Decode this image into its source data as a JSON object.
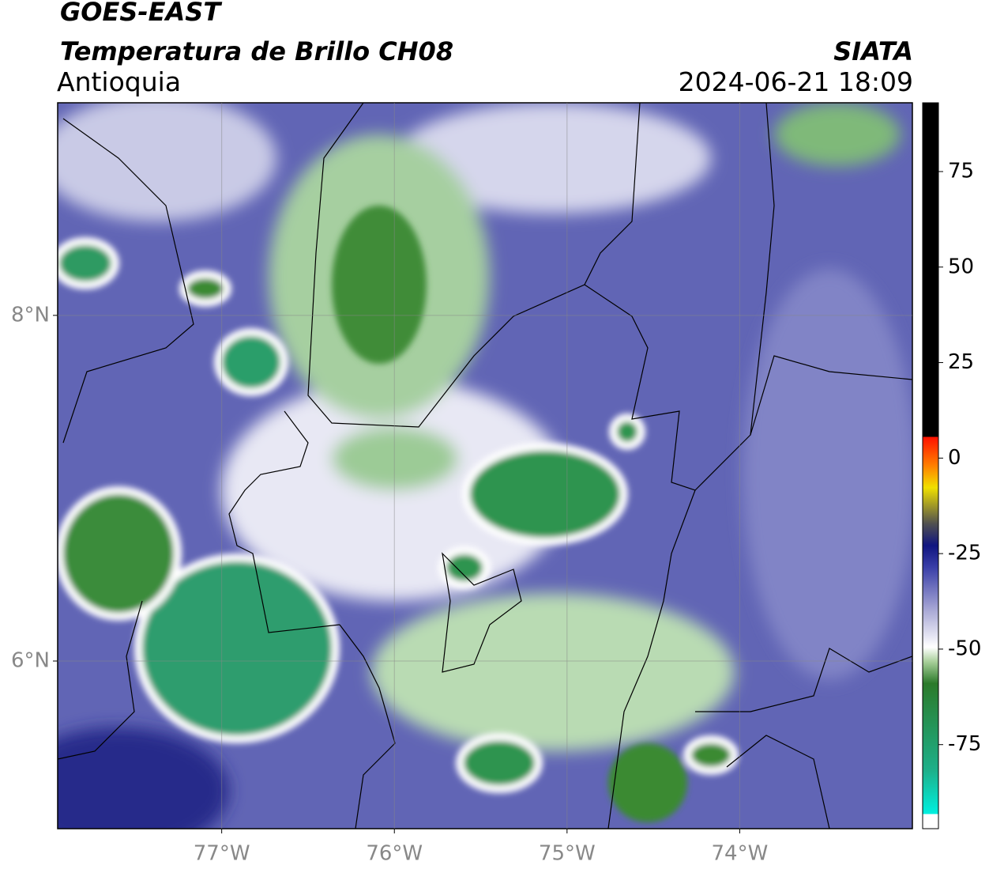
{
  "header": {
    "title": "GOES-EAST",
    "subtitle": "Temperatura de Brillo CH08",
    "region": "Antioquia",
    "source": "SIATA",
    "datetime": "2024-06-21 18:09"
  },
  "map": {
    "lonlim": [
      -77.95,
      -73.0
    ],
    "latlim": [
      5.03,
      9.23
    ],
    "lonticks": [
      {
        "value": -77,
        "label": "77°W"
      },
      {
        "value": -76,
        "label": "76°W"
      },
      {
        "value": -75,
        "label": "75°W"
      },
      {
        "value": -74,
        "label": "74°W"
      }
    ],
    "latticks": [
      {
        "value": 8,
        "label": "8°N"
      },
      {
        "value": 6,
        "label": "6°N"
      }
    ]
  },
  "colorbar": {
    "lim": [
      -97,
      93
    ],
    "ticks": [
      -75,
      -50,
      -25,
      0,
      25,
      50,
      75
    ]
  }
}
